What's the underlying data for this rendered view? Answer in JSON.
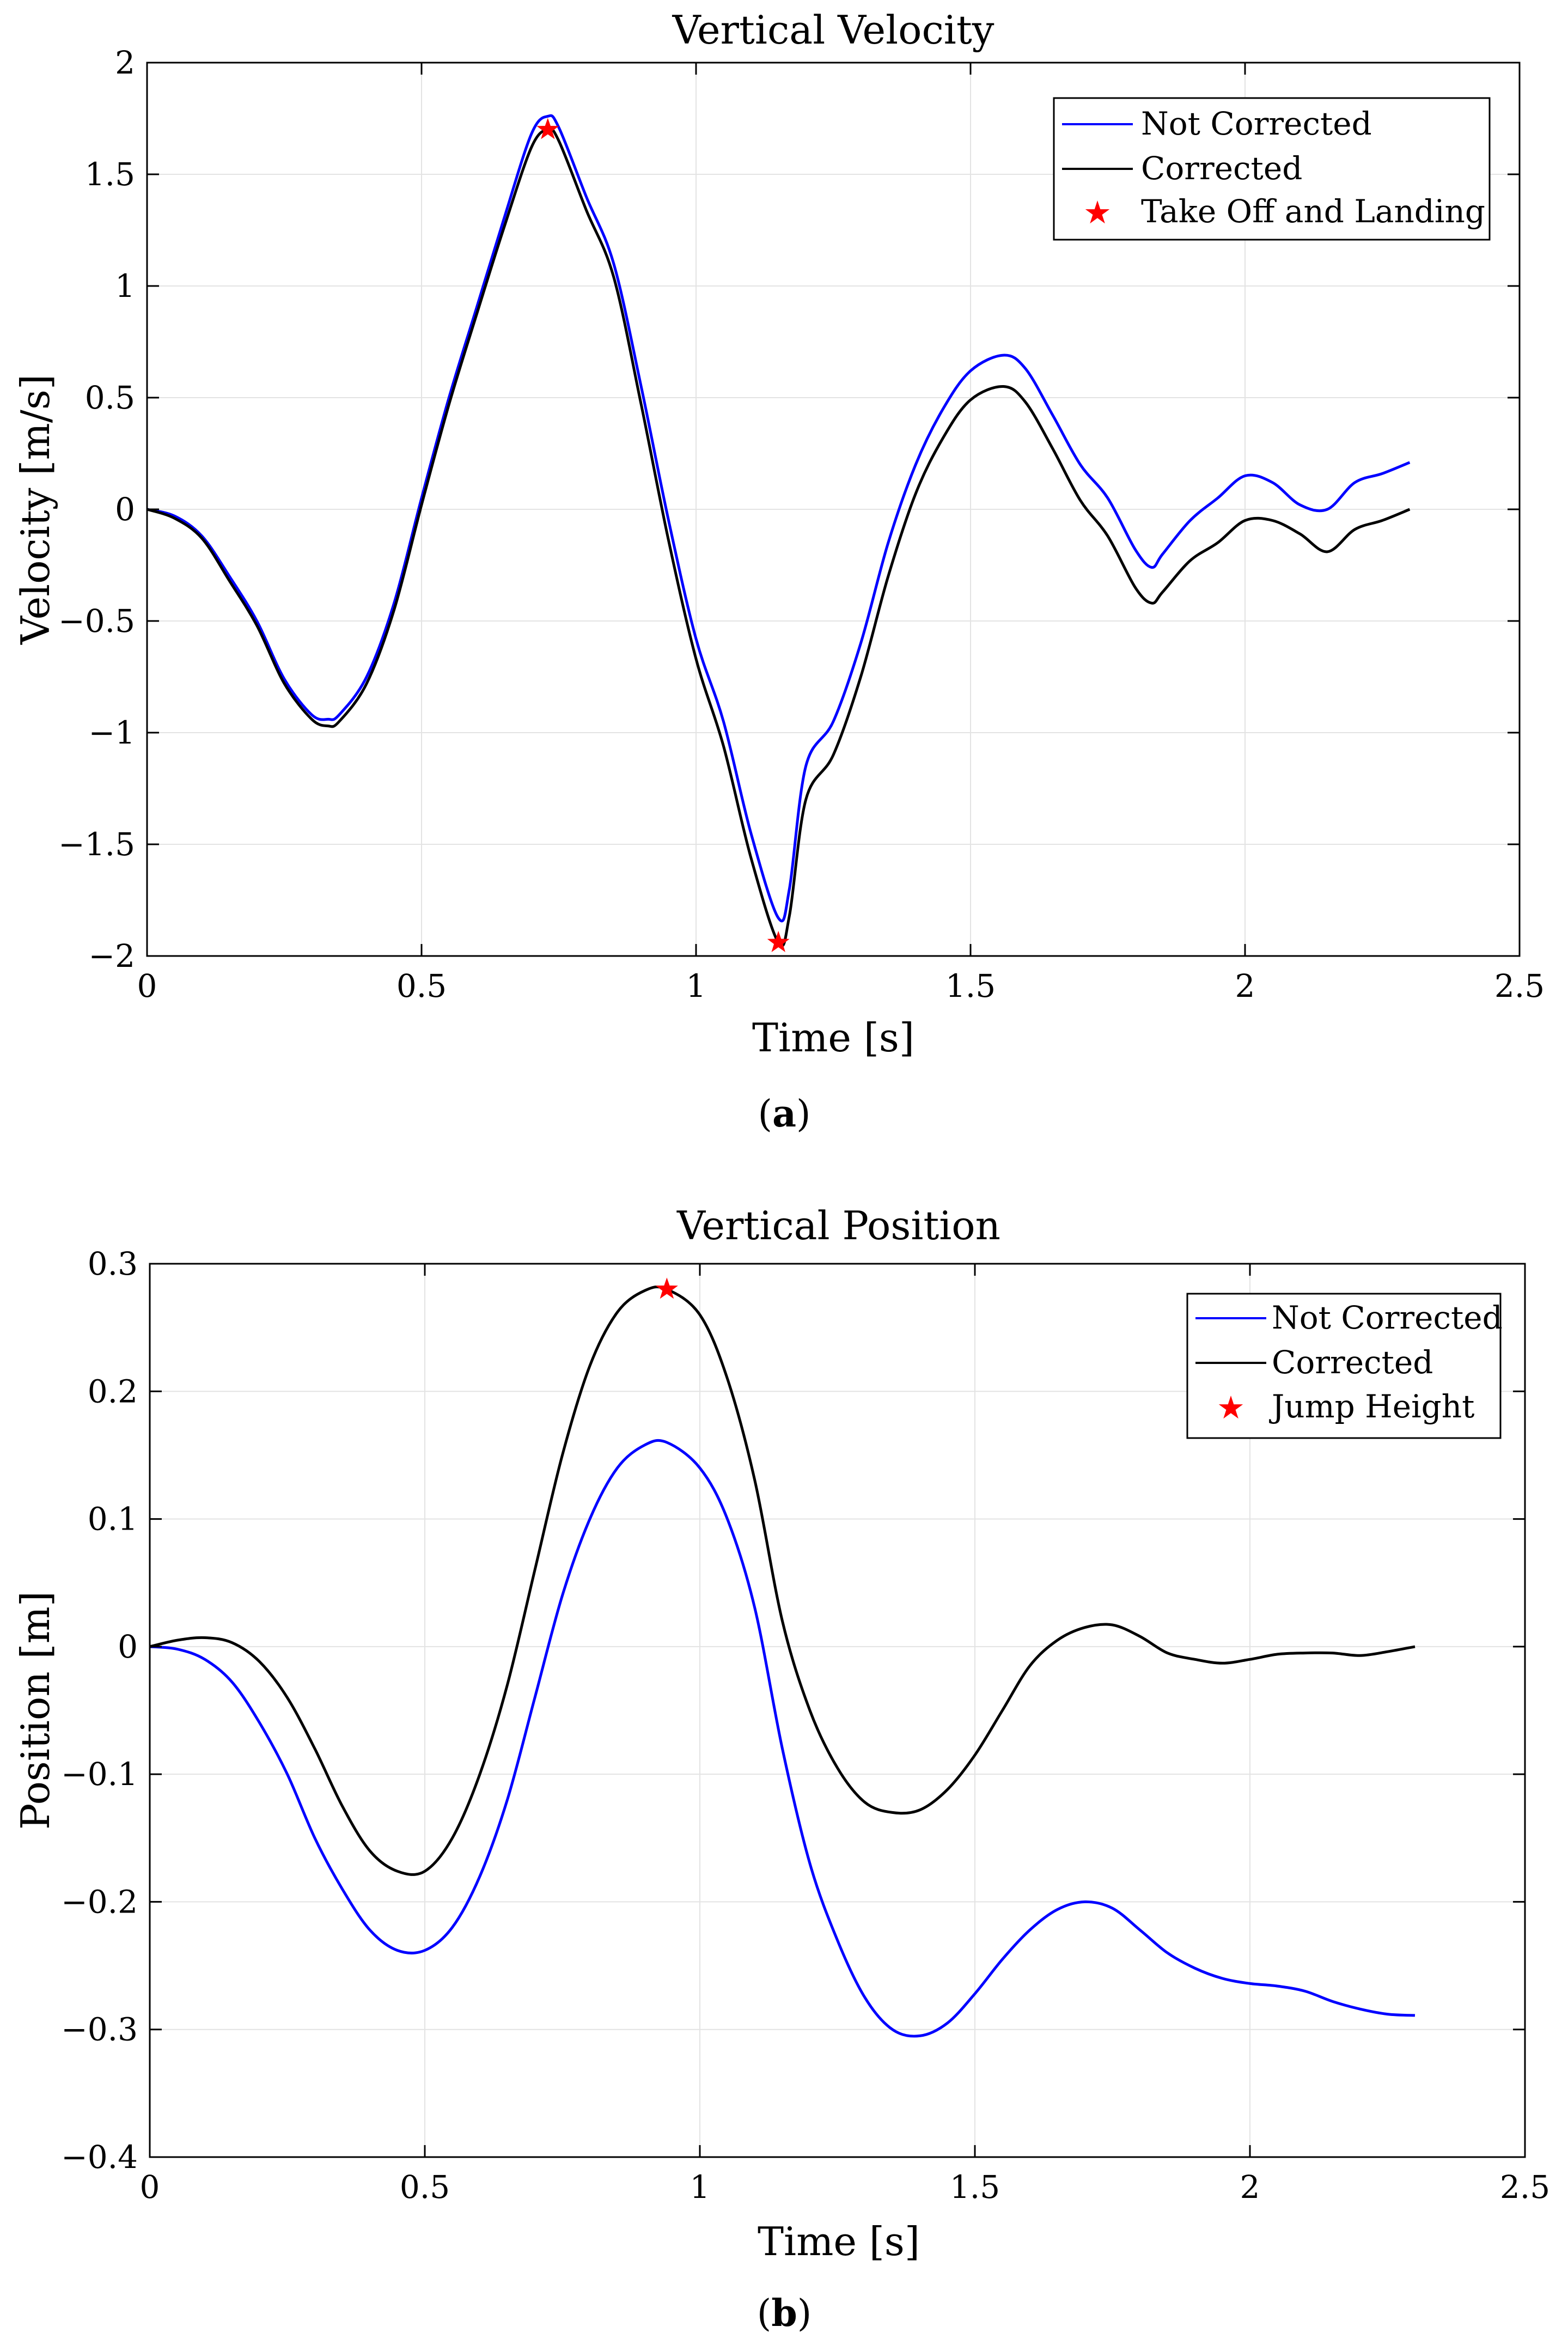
{
  "colors": {
    "not_corrected": "#0000ff",
    "corrected": "#000000",
    "marker": "#ff0000",
    "grid": "#e3e3e3"
  },
  "chart_data": [
    {
      "id": "a",
      "type": "line",
      "title": "Vertical Velocity",
      "xlabel": "Time [s]",
      "ylabel": "Velocity [m/s]",
      "caption": "a",
      "xlim": [
        0,
        2.5
      ],
      "ylim": [
        -2,
        2
      ],
      "xticks": [
        0,
        0.5,
        1,
        1.5,
        2,
        2.5
      ],
      "xtick_labels": [
        "0",
        "0.5",
        "1",
        "1.5",
        "2",
        "2.5"
      ],
      "yticks": [
        -2,
        -1.5,
        -1,
        -0.5,
        0,
        0.5,
        1,
        1.5,
        2
      ],
      "ytick_labels": [
        "−2",
        "−1.5",
        "−1",
        "−0.5",
        "0",
        "0.5",
        "1",
        "1.5",
        "2"
      ],
      "grid": true,
      "legend_position": "top-right",
      "legend": [
        "Not Corrected",
        "Corrected",
        "Take Off and Landing"
      ],
      "series": [
        {
          "name": "Not Corrected",
          "color": "#0000ff",
          "x": [
            0,
            0.05,
            0.1,
            0.15,
            0.2,
            0.25,
            0.3,
            0.33,
            0.35,
            0.4,
            0.45,
            0.5,
            0.55,
            0.6,
            0.65,
            0.7,
            0.73,
            0.75,
            0.8,
            0.85,
            0.9,
            0.95,
            1.0,
            1.05,
            1.1,
            1.15,
            1.17,
            1.2,
            1.25,
            1.3,
            1.35,
            1.4,
            1.45,
            1.5,
            1.56,
            1.6,
            1.65,
            1.7,
            1.75,
            1.8,
            1.83,
            1.85,
            1.9,
            1.95,
            2.0,
            2.05,
            2.1,
            2.15,
            2.2,
            2.25,
            2.3
          ],
          "y": [
            0,
            -0.03,
            -0.12,
            -0.3,
            -0.5,
            -0.76,
            -0.92,
            -0.94,
            -0.92,
            -0.75,
            -0.42,
            0.05,
            0.5,
            0.9,
            1.3,
            1.68,
            1.76,
            1.71,
            1.4,
            1.1,
            0.55,
            -0.05,
            -0.58,
            -0.95,
            -1.45,
            -1.83,
            -1.7,
            -1.15,
            -0.95,
            -0.6,
            -0.15,
            0.2,
            0.45,
            0.62,
            0.69,
            0.63,
            0.42,
            0.2,
            0.05,
            -0.18,
            -0.26,
            -0.2,
            -0.05,
            0.05,
            0.15,
            0.12,
            0.02,
            0.0,
            0.12,
            0.16,
            0.21
          ]
        },
        {
          "name": "Corrected",
          "color": "#000000",
          "x": [
            0,
            0.05,
            0.1,
            0.15,
            0.2,
            0.25,
            0.3,
            0.33,
            0.35,
            0.4,
            0.45,
            0.5,
            0.55,
            0.6,
            0.65,
            0.7,
            0.73,
            0.75,
            0.8,
            0.85,
            0.9,
            0.95,
            1.0,
            1.05,
            1.1,
            1.15,
            1.17,
            1.2,
            1.25,
            1.3,
            1.35,
            1.4,
            1.45,
            1.5,
            1.56,
            1.6,
            1.65,
            1.7,
            1.75,
            1.8,
            1.83,
            1.85,
            1.9,
            1.95,
            2.0,
            2.05,
            2.1,
            2.15,
            2.2,
            2.25,
            2.3
          ],
          "y": [
            0,
            -0.04,
            -0.13,
            -0.32,
            -0.52,
            -0.78,
            -0.94,
            -0.97,
            -0.95,
            -0.78,
            -0.45,
            0.02,
            0.47,
            0.87,
            1.26,
            1.62,
            1.7,
            1.65,
            1.34,
            1.04,
            0.47,
            -0.14,
            -0.67,
            -1.06,
            -1.56,
            -1.94,
            -1.82,
            -1.3,
            -1.1,
            -0.75,
            -0.3,
            0.07,
            0.32,
            0.49,
            0.55,
            0.48,
            0.27,
            0.04,
            -0.12,
            -0.35,
            -0.42,
            -0.37,
            -0.23,
            -0.15,
            -0.05,
            -0.05,
            -0.11,
            -0.19,
            -0.09,
            -0.05,
            0.0
          ]
        }
      ],
      "markers": {
        "name": "Take Off and Landing",
        "color": "#ff0000",
        "x": [
          0.73,
          1.15
        ],
        "y": [
          1.7,
          -1.94
        ]
      }
    },
    {
      "id": "b",
      "type": "line",
      "title": "Vertical Position",
      "xlabel": "Time [s]",
      "ylabel": "Position [m]",
      "caption": "b",
      "xlim": [
        0,
        2.5
      ],
      "ylim": [
        -0.4,
        0.3
      ],
      "xticks": [
        0,
        0.5,
        1,
        1.5,
        2,
        2.5
      ],
      "xtick_labels": [
        "0",
        "0.5",
        "1",
        "1.5",
        "2",
        "2.5"
      ],
      "yticks": [
        -0.4,
        -0.3,
        -0.2,
        -0.1,
        0,
        0.1,
        0.2,
        0.3
      ],
      "ytick_labels": [
        "−0.4",
        "−0.3",
        "−0.2",
        "−0.1",
        "0",
        "0.1",
        "0.2",
        "0.3"
      ],
      "grid": true,
      "legend_position": "top-right",
      "legend": [
        "Not Corrected",
        "Corrected",
        "Jump Height"
      ],
      "series": [
        {
          "name": "Not Corrected",
          "color": "#0000ff",
          "x": [
            0,
            0.05,
            0.1,
            0.15,
            0.2,
            0.25,
            0.3,
            0.35,
            0.4,
            0.45,
            0.5,
            0.55,
            0.6,
            0.65,
            0.7,
            0.75,
            0.8,
            0.85,
            0.9,
            0.94,
            1.0,
            1.05,
            1.1,
            1.15,
            1.2,
            1.25,
            1.3,
            1.35,
            1.4,
            1.45,
            1.5,
            1.55,
            1.6,
            1.65,
            1.7,
            1.75,
            1.8,
            1.85,
            1.9,
            1.95,
            2.0,
            2.05,
            2.1,
            2.15,
            2.2,
            2.25,
            2.3
          ],
          "y": [
            0,
            -0.002,
            -0.01,
            -0.028,
            -0.06,
            -0.1,
            -0.15,
            -0.19,
            -0.222,
            -0.238,
            -0.238,
            -0.22,
            -0.18,
            -0.12,
            -0.04,
            0.04,
            0.1,
            0.14,
            0.158,
            0.16,
            0.14,
            0.1,
            0.03,
            -0.08,
            -0.17,
            -0.23,
            -0.275,
            -0.3,
            -0.305,
            -0.295,
            -0.272,
            -0.245,
            -0.222,
            -0.206,
            -0.2,
            -0.205,
            -0.222,
            -0.24,
            -0.252,
            -0.26,
            -0.264,
            -0.266,
            -0.27,
            -0.278,
            -0.284,
            -0.288,
            -0.289
          ]
        },
        {
          "name": "Corrected",
          "color": "#000000",
          "x": [
            0,
            0.05,
            0.1,
            0.15,
            0.2,
            0.25,
            0.3,
            0.35,
            0.4,
            0.45,
            0.5,
            0.55,
            0.6,
            0.65,
            0.7,
            0.75,
            0.8,
            0.85,
            0.9,
            0.94,
            1.0,
            1.05,
            1.1,
            1.15,
            1.2,
            1.25,
            1.3,
            1.35,
            1.4,
            1.45,
            1.5,
            1.55,
            1.6,
            1.65,
            1.7,
            1.75,
            1.8,
            1.85,
            1.9,
            1.95,
            2.0,
            2.05,
            2.1,
            2.15,
            2.2,
            2.25,
            2.3
          ],
          "y": [
            0,
            0.005,
            0.007,
            0.003,
            -0.012,
            -0.04,
            -0.08,
            -0.125,
            -0.16,
            -0.176,
            -0.176,
            -0.15,
            -0.1,
            -0.03,
            0.06,
            0.15,
            0.22,
            0.262,
            0.279,
            0.28,
            0.26,
            0.21,
            0.13,
            0.02,
            -0.05,
            -0.095,
            -0.122,
            -0.13,
            -0.128,
            -0.112,
            -0.085,
            -0.05,
            -0.015,
            0.005,
            0.015,
            0.017,
            0.008,
            -0.005,
            -0.01,
            -0.013,
            -0.01,
            -0.006,
            -0.005,
            -0.005,
            -0.007,
            -0.004,
            0.0
          ]
        }
      ],
      "markers": {
        "name": "Jump Height",
        "color": "#ff0000",
        "x": [
          0.94
        ],
        "y": [
          0.28
        ]
      }
    }
  ]
}
